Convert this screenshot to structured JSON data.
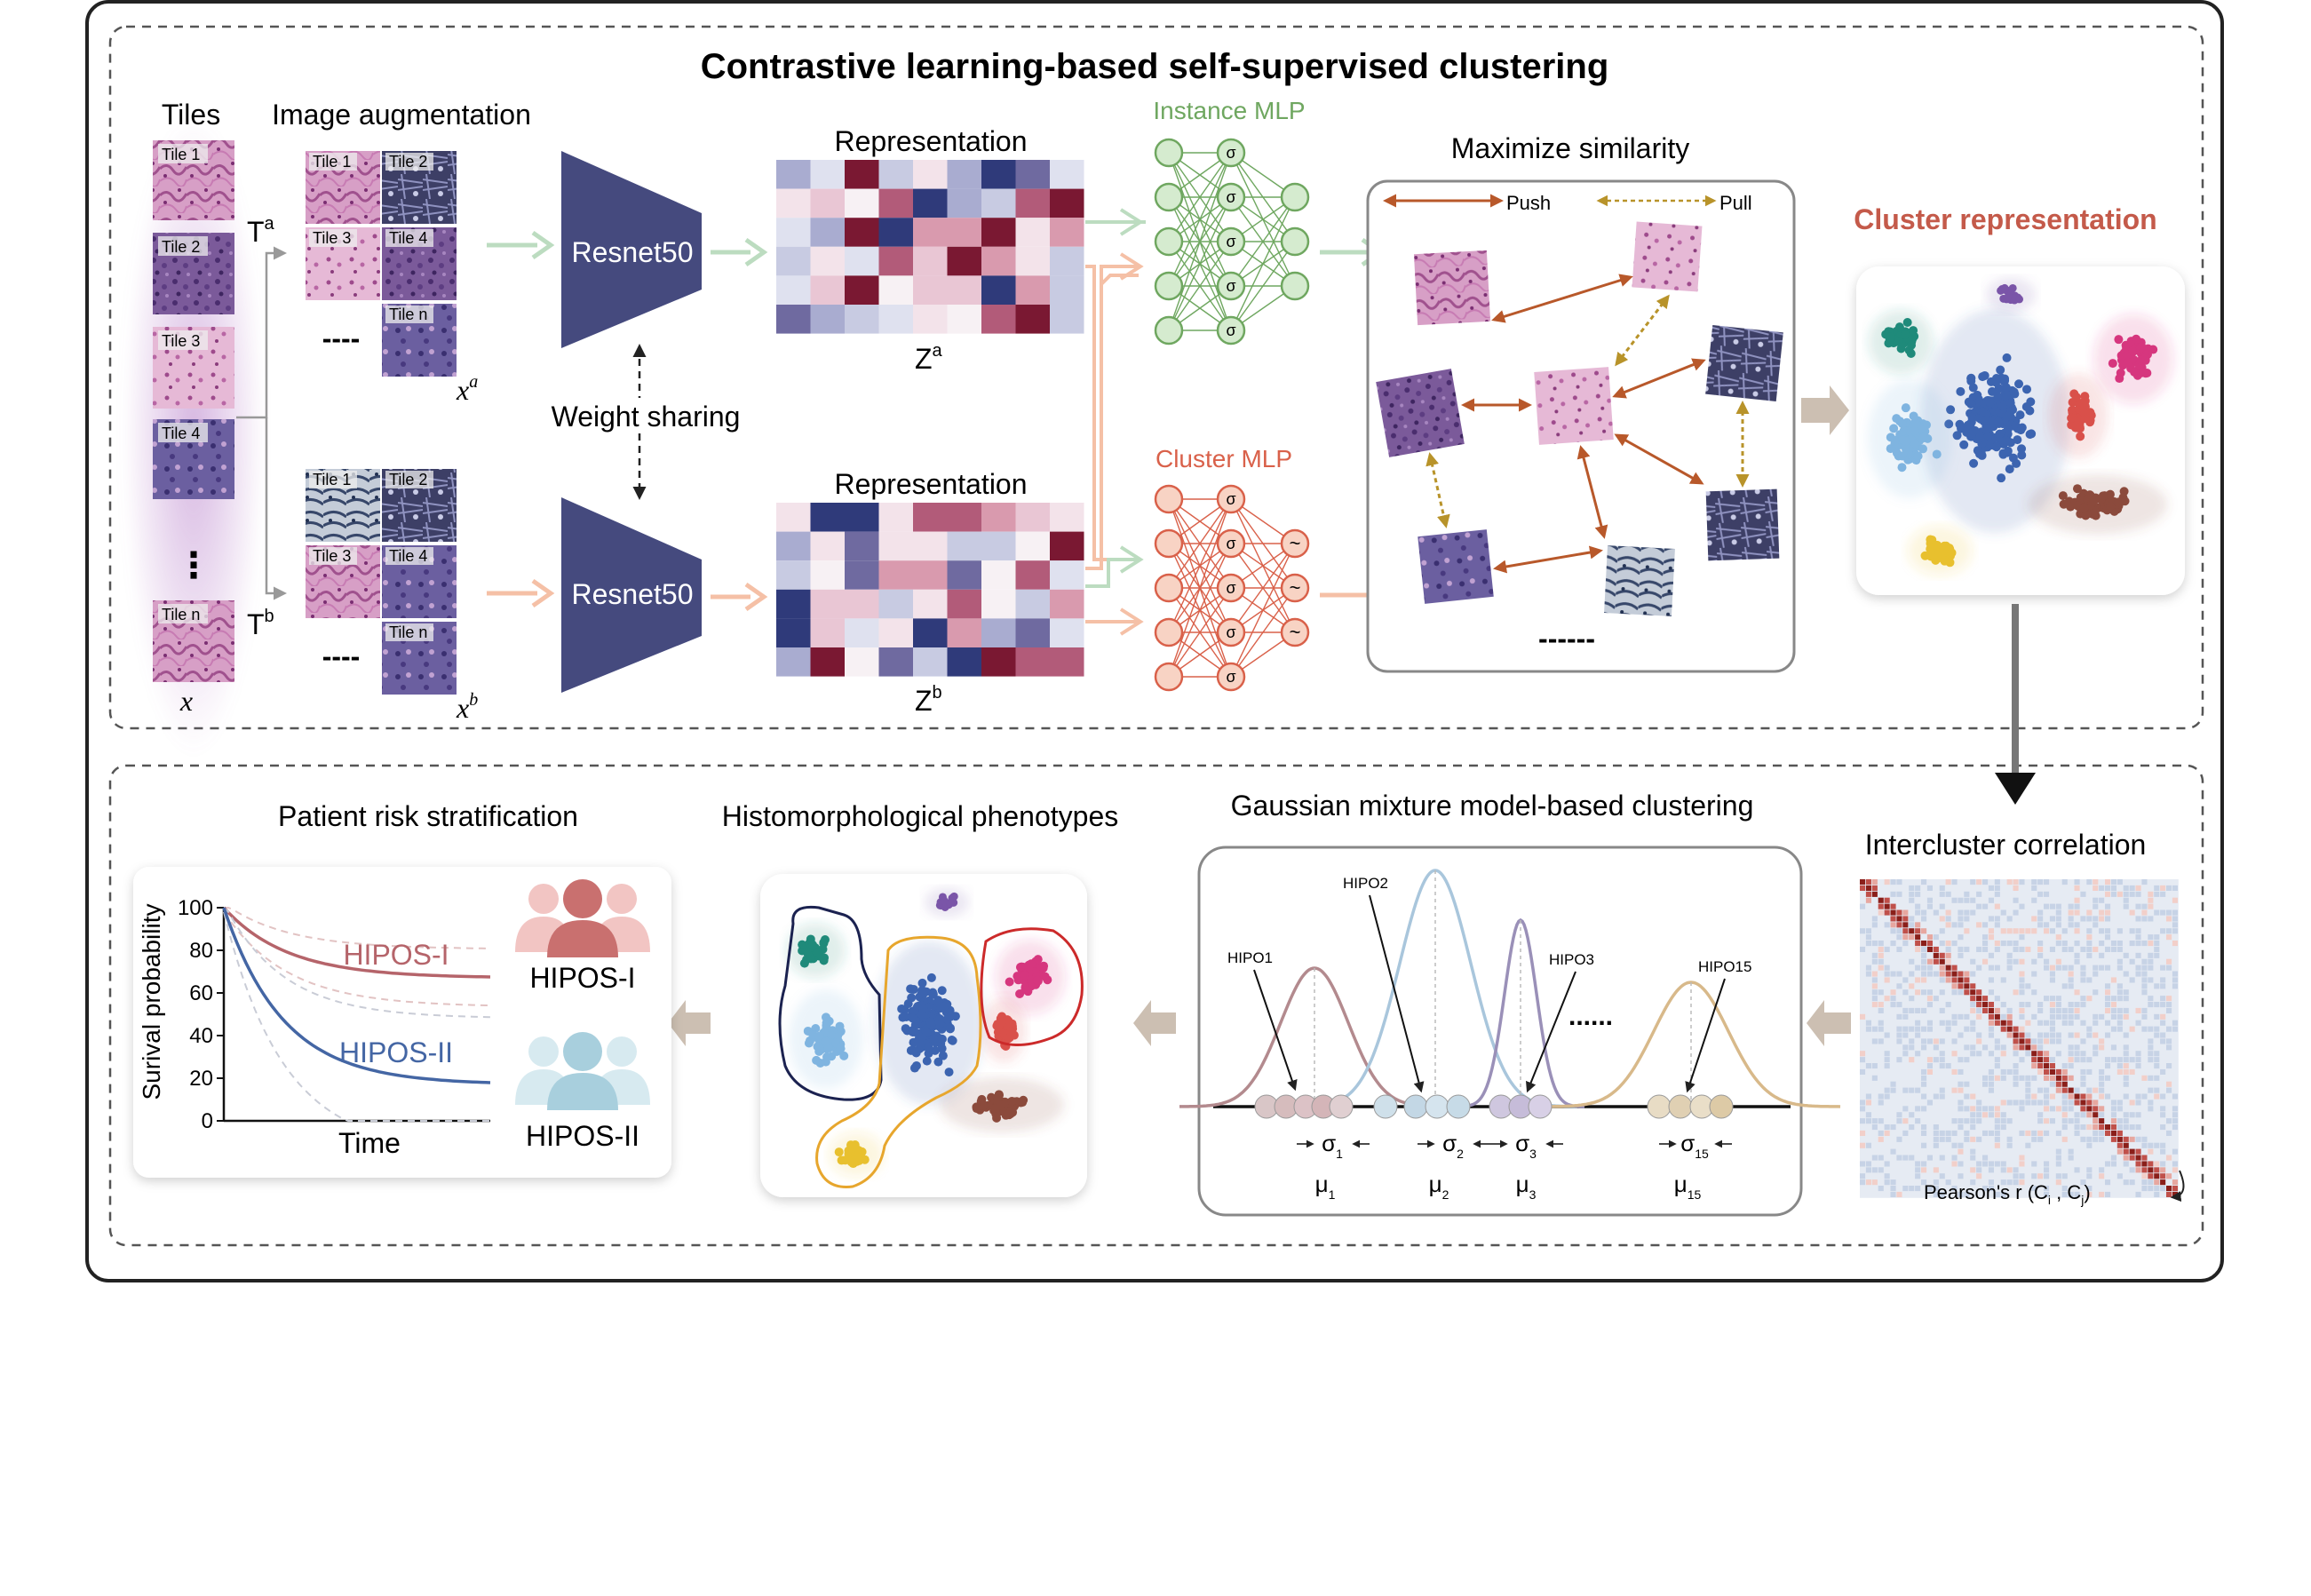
{
  "title": "Contrastive learning-based self-supervised clustering",
  "tiles": {
    "heading": "Tiles",
    "items": [
      "Tile 1",
      "Tile 2",
      "Tile 3",
      "Tile 4",
      "Tile n"
    ],
    "dots": "⋮",
    "x_symbol": "x"
  },
  "augmentation": {
    "heading": "Image augmentation",
    "top_labels": [
      "Tile 1",
      "Tile 2",
      "Tile 3",
      "Tile 4",
      "Tile n"
    ],
    "bottom_labels": [
      "Tile 1",
      "Tile 2",
      "Tile 3",
      "Tile 4",
      "Tile n"
    ],
    "xa": "x",
    "xa_sup": "a",
    "xb": "x",
    "xb_sup": "b",
    "ta": "T",
    "ta_sup": "a",
    "tb": "T",
    "tb_sup": "b",
    "dashes": "----"
  },
  "encoder": {
    "top_label": "Resnet50",
    "bottom_label": "Resnet50",
    "weight_sharing": "Weight sharing"
  },
  "representation": {
    "top_heading": "Representation",
    "bottom_heading": "Representation",
    "za": "Z",
    "za_sup": "a",
    "zb": "Z",
    "zb_sup": "b"
  },
  "mlp": {
    "instance_label": "Instance MLP",
    "cluster_label": "Cluster MLP",
    "sigma": "σ",
    "tilde": "~"
  },
  "similarity": {
    "heading": "Maximize similarity",
    "push": "Push",
    "pull": "Pull",
    "dashes": "------"
  },
  "cluster_representation": {
    "heading": "Cluster representation"
  },
  "intercluster": {
    "heading": "Intercluster correlation",
    "axis_label": "Pearson's r (C",
    "sub_i": "i",
    "comma": " , C",
    "sub_j": "j",
    "close": ")"
  },
  "gmm": {
    "heading": "Gaussian mixture model-based clustering",
    "hipo_labels": [
      "HIPO1",
      "HIPO2",
      "HIPO3",
      "HIPO15"
    ],
    "mu": [
      "μ",
      "μ",
      "μ",
      "μ"
    ],
    "mu_subs": [
      "1",
      "2",
      "3",
      "15"
    ],
    "sigma": [
      "σ",
      "σ",
      "σ",
      "σ"
    ],
    "sigma_subs": [
      "1",
      "2",
      "3",
      "15"
    ],
    "ellipsis": "......"
  },
  "phenotypes": {
    "heading": "Histomorphological phenotypes"
  },
  "risk": {
    "heading": "Patient risk stratification",
    "ylabel": "Surival probability",
    "xlabel": "Time",
    "yticks": [
      "100",
      "80",
      "60",
      "40",
      "20",
      "0"
    ],
    "curve1": "HIPOS-I",
    "curve2": "HIPOS-II",
    "group1": "HIPOS-I",
    "group2": "HIPOS-II"
  },
  "colors": {
    "resnet": "#454a7e",
    "instance_green": "#6fa760",
    "cluster_orange": "#d9614a",
    "cluster_red_text": "#c45a4a",
    "push_arrow": "#b8582a",
    "pull_arrow": "#b8932a",
    "hipos1": "#b5646a",
    "hipos2": "#4466a4",
    "frame": "#222222"
  }
}
